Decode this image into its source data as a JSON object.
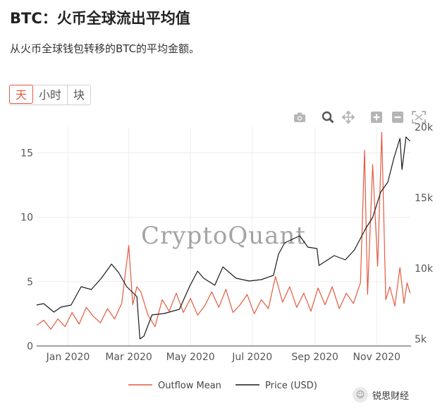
{
  "header": {
    "title": "BTC：火币全球流出平均值",
    "subtitle": "从火币全球钱包转移的BTC的平均金额。"
  },
  "range_selector": {
    "options": [
      "天",
      "小时",
      "块"
    ],
    "active": "天"
  },
  "modebar": {
    "icons": [
      "camera-icon",
      "zoom-icon",
      "pan-icon",
      "zoom-in-icon",
      "zoom-out-icon",
      "autoscale-icon"
    ]
  },
  "colors": {
    "outflow": "#e35a3f",
    "price": "#1a1a1a",
    "grid": "#eeeeee",
    "axis_text": "#555555"
  },
  "chart_data": {
    "type": "line",
    "watermark_text": "CryptoQuant",
    "x_range": [
      "2019-12-01",
      "2020-12-05"
    ],
    "x_ticks": [
      "Jan 2020",
      "Mar 2020",
      "May 2020",
      "Jul 2020",
      "Sep 2020",
      "Nov 2020"
    ],
    "y_left": {
      "range": [
        0,
        17
      ],
      "ticks": [
        "0",
        "5",
        "10",
        "15"
      ]
    },
    "y_right": {
      "range": [
        4500,
        20000
      ],
      "ticks": [
        "5k",
        "10k",
        "15k",
        "20k"
      ]
    },
    "legend": {
      "position": "bottom",
      "entries": [
        "Outflow Mean",
        "Price (USD)"
      ]
    },
    "grid": true,
    "series": [
      {
        "name": "Outflow Mean",
        "axis": "left",
        "points": [
          [
            "2019-12-01",
            1.6
          ],
          [
            "2019-12-08",
            2.0
          ],
          [
            "2019-12-15",
            1.3
          ],
          [
            "2019-12-22",
            2.1
          ],
          [
            "2019-12-29",
            1.5
          ],
          [
            "2020-01-05",
            2.6
          ],
          [
            "2020-01-12",
            1.7
          ],
          [
            "2020-01-19",
            3.0
          ],
          [
            "2020-01-26",
            2.3
          ],
          [
            "2020-02-02",
            1.8
          ],
          [
            "2020-02-09",
            2.9
          ],
          [
            "2020-02-16",
            2.1
          ],
          [
            "2020-02-23",
            3.3
          ],
          [
            "2020-03-01",
            7.8
          ],
          [
            "2020-03-05",
            3.2
          ],
          [
            "2020-03-09",
            4.6
          ],
          [
            "2020-03-13",
            4.2
          ],
          [
            "2020-03-20",
            2.4
          ],
          [
            "2020-03-27",
            1.5
          ],
          [
            "2020-04-03",
            3.6
          ],
          [
            "2020-04-10",
            2.7
          ],
          [
            "2020-04-17",
            4.1
          ],
          [
            "2020-04-24",
            2.6
          ],
          [
            "2020-05-01",
            3.7
          ],
          [
            "2020-05-08",
            2.4
          ],
          [
            "2020-05-15",
            3.1
          ],
          [
            "2020-05-22",
            4.2
          ],
          [
            "2020-05-29",
            3.0
          ],
          [
            "2020-06-05",
            4.4
          ],
          [
            "2020-06-12",
            2.6
          ],
          [
            "2020-06-19",
            3.2
          ],
          [
            "2020-06-26",
            4.0
          ],
          [
            "2020-07-03",
            2.5
          ],
          [
            "2020-07-10",
            3.6
          ],
          [
            "2020-07-17",
            2.9
          ],
          [
            "2020-07-24",
            5.4
          ],
          [
            "2020-07-31",
            3.4
          ],
          [
            "2020-08-07",
            4.6
          ],
          [
            "2020-08-14",
            3.0
          ],
          [
            "2020-08-21",
            4.1
          ],
          [
            "2020-08-28",
            2.7
          ],
          [
            "2020-09-04",
            4.5
          ],
          [
            "2020-09-11",
            3.2
          ],
          [
            "2020-09-18",
            4.6
          ],
          [
            "2020-09-25",
            2.9
          ],
          [
            "2020-10-02",
            4.1
          ],
          [
            "2020-10-09",
            3.3
          ],
          [
            "2020-10-16",
            4.9
          ],
          [
            "2020-10-20",
            15.2
          ],
          [
            "2020-10-23",
            4.0
          ],
          [
            "2020-10-28",
            14.1
          ],
          [
            "2020-11-02",
            6.2
          ],
          [
            "2020-11-06",
            16.6
          ],
          [
            "2020-11-10",
            3.6
          ],
          [
            "2020-11-14",
            4.6
          ],
          [
            "2020-11-19",
            3.1
          ],
          [
            "2020-11-24",
            6.1
          ],
          [
            "2020-11-28",
            3.3
          ],
          [
            "2020-12-01",
            4.9
          ],
          [
            "2020-12-04",
            4.1
          ]
        ]
      },
      {
        "name": "Price (USD)",
        "axis": "right",
        "points": [
          [
            "2019-12-01",
            7400
          ],
          [
            "2019-12-08",
            7500
          ],
          [
            "2019-12-18",
            6900
          ],
          [
            "2019-12-25",
            7250
          ],
          [
            "2020-01-04",
            7400
          ],
          [
            "2020-01-14",
            8700
          ],
          [
            "2020-01-24",
            8500
          ],
          [
            "2020-02-03",
            9300
          ],
          [
            "2020-02-13",
            10300
          ],
          [
            "2020-02-20",
            9700
          ],
          [
            "2020-02-28",
            8700
          ],
          [
            "2020-03-09",
            8000
          ],
          [
            "2020-03-12",
            5000
          ],
          [
            "2020-03-16",
            5200
          ],
          [
            "2020-03-24",
            6700
          ],
          [
            "2020-04-05",
            6800
          ],
          [
            "2020-04-20",
            7100
          ],
          [
            "2020-04-30",
            8700
          ],
          [
            "2020-05-08",
            9800
          ],
          [
            "2020-05-14",
            9300
          ],
          [
            "2020-05-25",
            8800
          ],
          [
            "2020-06-02",
            10100
          ],
          [
            "2020-06-15",
            9300
          ],
          [
            "2020-06-28",
            9100
          ],
          [
            "2020-07-10",
            9200
          ],
          [
            "2020-07-22",
            9500
          ],
          [
            "2020-07-27",
            11000
          ],
          [
            "2020-08-02",
            11800
          ],
          [
            "2020-08-17",
            12300
          ],
          [
            "2020-08-25",
            11500
          ],
          [
            "2020-09-03",
            11400
          ],
          [
            "2020-09-05",
            10200
          ],
          [
            "2020-09-20",
            10900
          ],
          [
            "2020-10-01",
            10600
          ],
          [
            "2020-10-10",
            11300
          ],
          [
            "2020-10-21",
            12800
          ],
          [
            "2020-10-28",
            13600
          ],
          [
            "2020-11-05",
            15400
          ],
          [
            "2020-11-12",
            16100
          ],
          [
            "2020-11-18",
            17800
          ],
          [
            "2020-11-24",
            19200
          ],
          [
            "2020-11-26",
            17000
          ],
          [
            "2020-11-30",
            19300
          ],
          [
            "2020-12-04",
            19000
          ]
        ]
      }
    ]
  }
}
